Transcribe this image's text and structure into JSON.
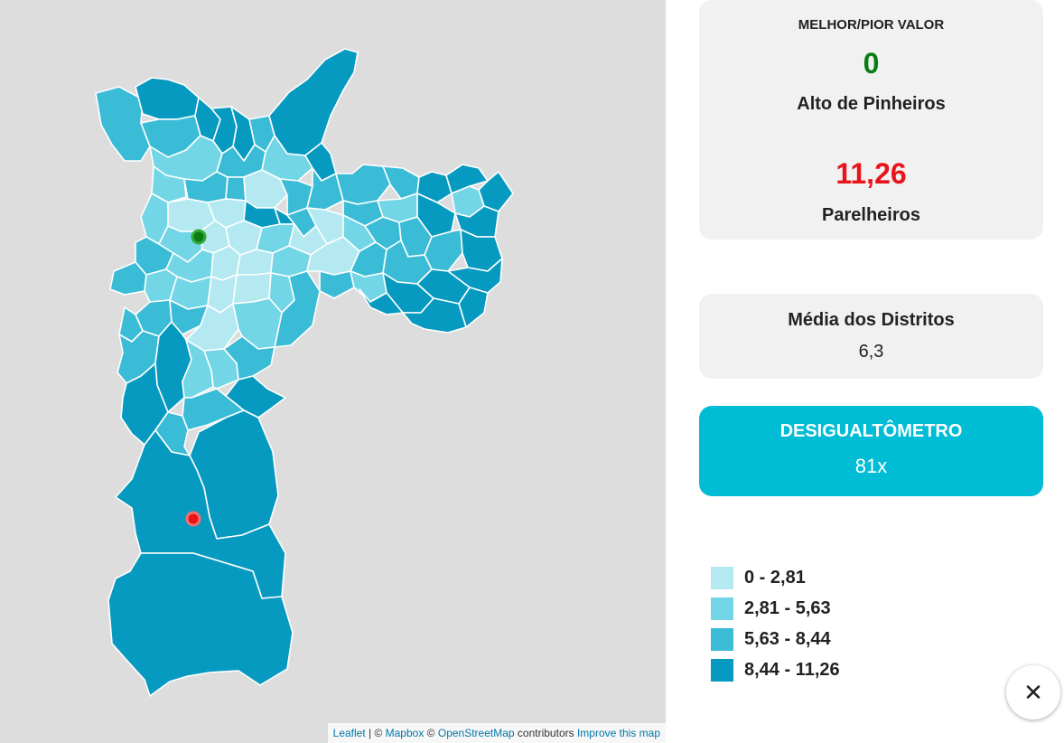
{
  "colors": {
    "class_1": "#b4e9f1",
    "class_2": "#72d6e6",
    "class_3": "#3bbcd6",
    "class_4": "#079ac0",
    "best": "#0a7d12",
    "worst": "#e8141a",
    "accent": "#00bcd4",
    "map_background": "#dddddd"
  },
  "markers": [
    {
      "name": "best-marker",
      "color": "#0a7d12"
    },
    {
      "name": "worst-marker",
      "color": "#e8141a"
    }
  ],
  "attribution": {
    "leaflet": "Leaflet",
    "sep": " | © ",
    "mapbox": "Mapbox",
    "copy": " © ",
    "osm": "OpenStreetMap",
    "contrib": " contributors ",
    "improve": "Improve this map"
  },
  "best_worst": {
    "title": "MELHOR/PIOR VALOR",
    "best_value": "0",
    "best_name": "Alto de Pinheiros",
    "worst_value": "11,26",
    "worst_name": "Parelheiros"
  },
  "average": {
    "title": "Média dos Distritos",
    "value": "6,3"
  },
  "desigualtometro": {
    "title": "DESIGUALTÔMETRO",
    "value": "81x"
  },
  "legend": [
    {
      "label": "0 - 2,81",
      "color": "#b4e9f1"
    },
    {
      "label": "2,81 - 5,63",
      "color": "#72d6e6"
    },
    {
      "label": "5,63 - 8,44",
      "color": "#3bbcd6"
    },
    {
      "label": "8,44 - 11,26",
      "color": "#079ac0"
    }
  ],
  "close_icon": "close-icon"
}
